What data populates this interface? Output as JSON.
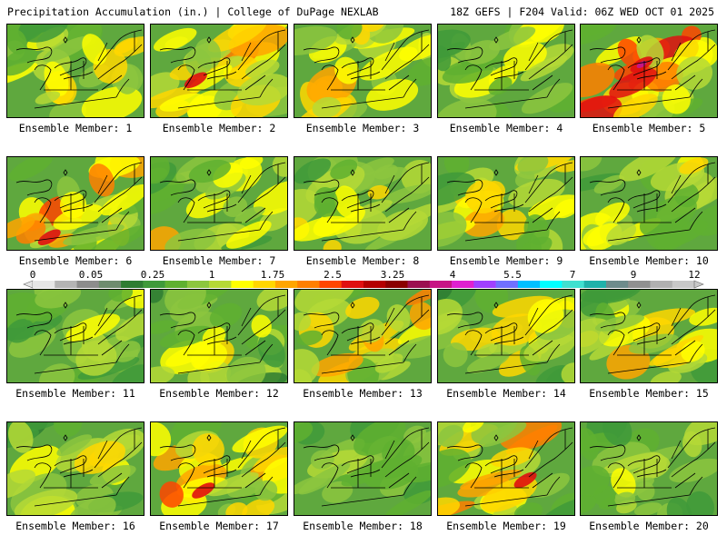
{
  "header": {
    "title_left": "Precipitation Accumulation (in.) | College of DuPage NEXLAB",
    "title_right": "18Z GEFS | F204 Valid: 06Z WED OCT 01 2025"
  },
  "legend": {
    "tick_labels": [
      "0",
      "0.05",
      "0.25",
      "1",
      "1.75",
      "2.5",
      "3.25",
      "4",
      "5.5",
      "7",
      "9",
      "12"
    ],
    "colors": [
      "#e6e6e6",
      "#b4b4b4",
      "#8c8c8c",
      "#6e8c6e",
      "#2e7d32",
      "#3f9a3a",
      "#5fb030",
      "#8cc63e",
      "#b5d936",
      "#ffff00",
      "#ffd700",
      "#ffa500",
      "#ff7f00",
      "#ff4500",
      "#e01010",
      "#b40000",
      "#8b0000",
      "#9b1050",
      "#c71585",
      "#e020d0",
      "#a040ff",
      "#7070ff",
      "#00bfff",
      "#00ffff",
      "#40e0d0",
      "#20b2aa",
      "#6e8c8c",
      "#909090",
      "#b0b0b0",
      "#c8c8c8"
    ]
  },
  "members": [
    {
      "label": "Ensemble Member: 1",
      "wetness": 0.55
    },
    {
      "label": "Ensemble Member: 2",
      "wetness": 0.62
    },
    {
      "label": "Ensemble Member: 3",
      "wetness": 0.58
    },
    {
      "label": "Ensemble Member: 4",
      "wetness": 0.42
    },
    {
      "label": "Ensemble Member: 5",
      "wetness": 0.78
    },
    {
      "label": "Ensemble Member: 6",
      "wetness": 0.66
    },
    {
      "label": "Ensemble Member: 7",
      "wetness": 0.52
    },
    {
      "label": "Ensemble Member: 8",
      "wetness": 0.48
    },
    {
      "label": "Ensemble Member: 9",
      "wetness": 0.56
    },
    {
      "label": "Ensemble Member: 10",
      "wetness": 0.45
    },
    {
      "label": "Ensemble Member: 11",
      "wetness": 0.4
    },
    {
      "label": "Ensemble Member: 12",
      "wetness": 0.47
    },
    {
      "label": "Ensemble Member: 13",
      "wetness": 0.57
    },
    {
      "label": "Ensemble Member: 14",
      "wetness": 0.53
    },
    {
      "label": "Ensemble Member: 15",
      "wetness": 0.6
    },
    {
      "label": "Ensemble Member: 16",
      "wetness": 0.5
    },
    {
      "label": "Ensemble Member: 17",
      "wetness": 0.7
    },
    {
      "label": "Ensemble Member: 18",
      "wetness": 0.35
    },
    {
      "label": "Ensemble Member: 19",
      "wetness": 0.64
    },
    {
      "label": "Ensemble Member: 20",
      "wetness": 0.38
    }
  ]
}
